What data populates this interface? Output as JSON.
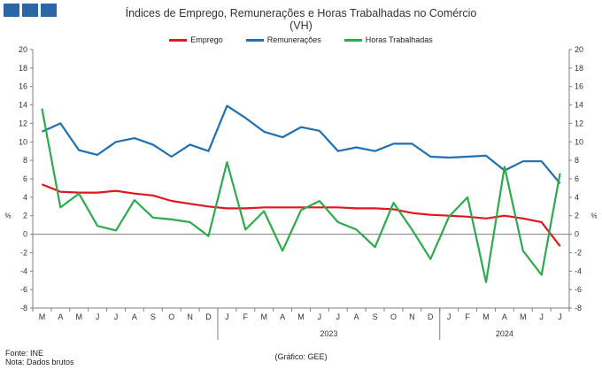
{
  "title_line1": "Índices de Emprego, Remunerações e Horas Trabalhadas no Comércio",
  "title_line2": "(VH)",
  "source": "Fonte: INE",
  "note": "Nota: Dados brutos",
  "credit": "(Gráfico: GEE)",
  "chart_data": {
    "type": "line",
    "title": "Índices de Emprego, Remunerações e Horas Trabalhadas no Comércio (VH)",
    "ylabel": "%",
    "ylabel_right": "%",
    "ylim": [
      -8,
      20
    ],
    "yticks": [
      -8,
      -6,
      -4,
      -2,
      0,
      2,
      4,
      6,
      8,
      10,
      12,
      14,
      16,
      18,
      20
    ],
    "grid": false,
    "legend_position": "top",
    "categories": [
      "M",
      "A",
      "M",
      "J",
      "J",
      "A",
      "S",
      "O",
      "N",
      "D",
      "J",
      "F",
      "M",
      "A",
      "M",
      "J",
      "J",
      "A",
      "S",
      "O",
      "N",
      "D",
      "J",
      "F",
      "M",
      "A",
      "M",
      "J",
      "J"
    ],
    "year_labels": [
      {
        "label": "2023",
        "start": 10,
        "end": 21
      },
      {
        "label": "2024",
        "start": 22,
        "end": 28
      }
    ],
    "series": [
      {
        "name": "Emprego",
        "color": "#e0171c",
        "values": [
          5.4,
          4.6,
          4.5,
          4.5,
          4.7,
          4.4,
          4.2,
          3.6,
          3.3,
          3.0,
          2.8,
          2.8,
          2.9,
          2.9,
          2.9,
          2.9,
          2.9,
          2.8,
          2.8,
          2.7,
          2.3,
          2.1,
          2.0,
          1.9,
          1.7,
          2.0,
          1.7,
          1.3,
          -1.3
        ]
      },
      {
        "name": "Remunerações",
        "color": "#1f6fb4",
        "values": [
          11.1,
          12.0,
          9.1,
          8.6,
          10.0,
          10.4,
          9.7,
          8.4,
          9.7,
          9.0,
          13.9,
          12.6,
          11.1,
          10.5,
          11.6,
          11.2,
          9.0,
          9.4,
          9.0,
          9.8,
          9.8,
          8.4,
          8.3,
          8.4,
          8.5,
          6.9,
          7.9,
          7.9,
          5.5
        ]
      },
      {
        "name": "Horas Trabalhadas",
        "color": "#2dab4c",
        "values": [
          13.6,
          2.9,
          4.4,
          0.9,
          0.4,
          3.7,
          1.8,
          1.6,
          1.3,
          -0.2,
          7.8,
          0.5,
          2.5,
          -1.8,
          2.6,
          3.6,
          1.3,
          0.5,
          -1.4,
          3.4,
          0.5,
          -2.7,
          1.9,
          4.0,
          -5.2,
          7.3,
          -1.8,
          -4.4,
          6.6
        ]
      }
    ],
    "colors": {
      "axis": "#7f7f7f",
      "tick_text": "#333333"
    }
  }
}
